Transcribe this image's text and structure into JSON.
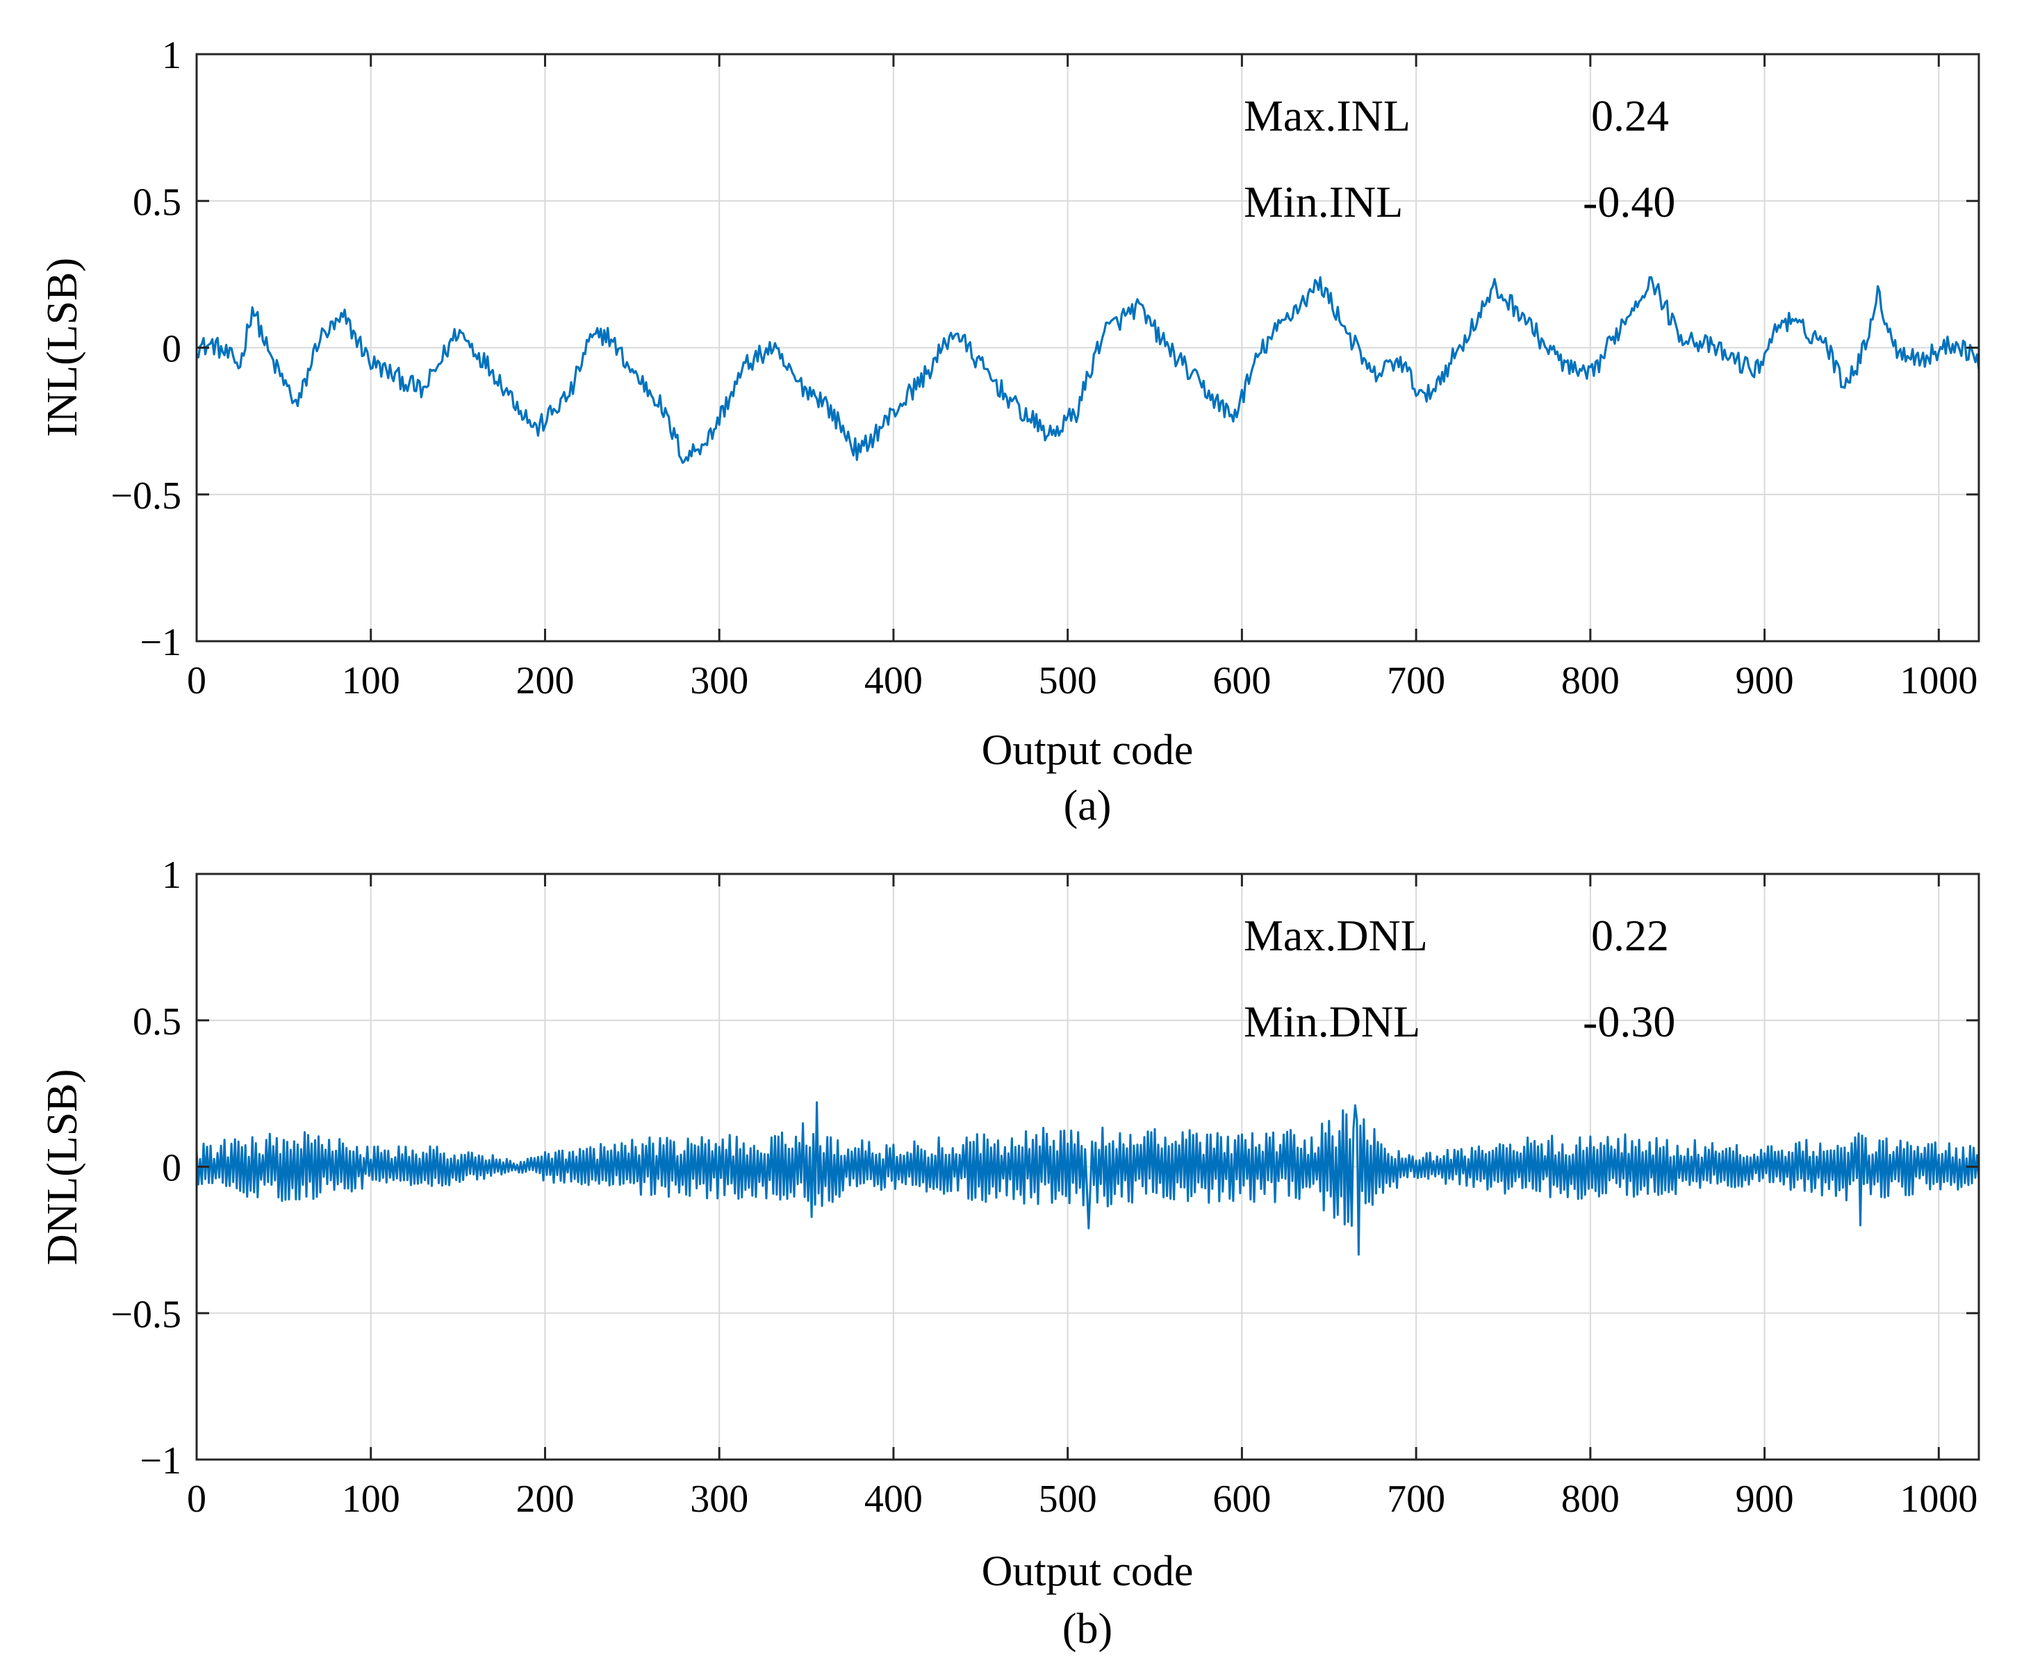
{
  "figure": {
    "line_color": "#0072BD",
    "grid_color": "#d9d9d9",
    "axis_color": "#262626"
  },
  "chart_data": [
    {
      "type": "line",
      "panel_label": "(a)",
      "xlabel": "Output code",
      "ylabel": "INL(LSB)",
      "xlim": [
        0,
        1023
      ],
      "ylim": [
        -1,
        1
      ],
      "xticks": [
        0,
        100,
        200,
        300,
        400,
        500,
        600,
        700,
        800,
        900,
        1000
      ],
      "xtick_labels": [
        "0",
        "100",
        "200",
        "300",
        "400",
        "500",
        "600",
        "700",
        "800",
        "900",
        "1000"
      ],
      "yticks": [
        1,
        0.5,
        0,
        -0.5,
        -1
      ],
      "ytick_labels": [
        "1",
        "0.5",
        "0",
        "−0.5",
        "−1"
      ],
      "grid": true,
      "annotations": [
        {
          "label": "Max.INL",
          "value": "0.24"
        },
        {
          "label": "Min.INL",
          "value": "-0.40"
        }
      ],
      "series": [
        {
          "name": "INL",
          "color": "#0072BD",
          "noise_amplitude": 0.035,
          "x": [
            0,
            10,
            25,
            32,
            42,
            58,
            70,
            85,
            100,
            130,
            150,
            170,
            195,
            215,
            225,
            235,
            250,
            265,
            280,
            295,
            315,
            330,
            345,
            360,
            380,
            400,
            420,
            435,
            450,
            470,
            490,
            505,
            520,
            540,
            555,
            575,
            595,
            610,
            625,
            645,
            660,
            675,
            690,
            705,
            725,
            745,
            760,
            775,
            790,
            800,
            815,
            835,
            850,
            870,
            895,
            910,
            935,
            945,
            955,
            965,
            975,
            990,
            1010,
            1023
          ],
          "y": [
            0.0,
            0.01,
            -0.06,
            0.14,
            -0.03,
            -0.2,
            0.03,
            0.1,
            -0.05,
            -0.15,
            0.06,
            -0.08,
            -0.28,
            -0.15,
            0.02,
            0.05,
            -0.08,
            -0.18,
            -0.38,
            -0.3,
            -0.06,
            0.0,
            -0.12,
            -0.18,
            -0.36,
            -0.22,
            -0.08,
            0.06,
            -0.06,
            -0.2,
            -0.3,
            -0.22,
            0.05,
            0.14,
            0.02,
            -0.12,
            -0.24,
            -0.02,
            0.1,
            0.22,
            0.06,
            -0.1,
            -0.04,
            -0.18,
            0.0,
            0.2,
            0.12,
            0.0,
            -0.08,
            -0.1,
            0.05,
            0.24,
            0.05,
            0.0,
            -0.08,
            0.1,
            0.02,
            -0.12,
            -0.04,
            0.18,
            0.0,
            -0.04,
            0.02,
            -0.04
          ]
        }
      ]
    },
    {
      "type": "line",
      "panel_label": "(b)",
      "xlabel": "Output code",
      "ylabel": "DNL(LSB)",
      "xlim": [
        0,
        1023
      ],
      "ylim": [
        -1,
        1
      ],
      "xticks": [
        0,
        100,
        200,
        300,
        400,
        500,
        600,
        700,
        800,
        900,
        1000
      ],
      "xtick_labels": [
        "0",
        "100",
        "200",
        "300",
        "400",
        "500",
        "600",
        "700",
        "800",
        "900",
        "1000"
      ],
      "yticks": [
        1,
        0.5,
        0,
        -0.5,
        -1
      ],
      "ytick_labels": [
        "1",
        "0.5",
        "0",
        "−0.5",
        "−1"
      ],
      "grid": true,
      "annotations": [
        {
          "label": "Max.DNL",
          "value": "0.22"
        },
        {
          "label": "Min.DNL",
          "value": "-0.30"
        }
      ],
      "series": [
        {
          "name": "DNL",
          "color": "#0072BD",
          "envelope_x": [
            0,
            60,
            100,
            150,
            185,
            200,
            250,
            300,
            340,
            355,
            370,
            400,
            450,
            500,
            550,
            600,
            640,
            665,
            680,
            700,
            740,
            800,
            850,
            900,
            950,
            1023
          ],
          "envelope_amp": [
            0.08,
            0.13,
            0.07,
            0.07,
            0.02,
            0.05,
            0.1,
            0.11,
            0.12,
            0.18,
            0.1,
            0.08,
            0.12,
            0.14,
            0.13,
            0.12,
            0.13,
            0.22,
            0.1,
            0.04,
            0.09,
            0.12,
            0.1,
            0.07,
            0.12,
            0.07
          ],
          "peaks": [
            {
              "x": 356,
              "y": 0.22
            },
            {
              "x": 667,
              "y": -0.3
            },
            {
              "x": 665,
              "y": 0.21
            },
            {
              "x": 512,
              "y": -0.21
            },
            {
              "x": 955,
              "y": -0.2
            },
            {
              "x": 955,
              "y": 0.2
            }
          ]
        }
      ]
    }
  ]
}
